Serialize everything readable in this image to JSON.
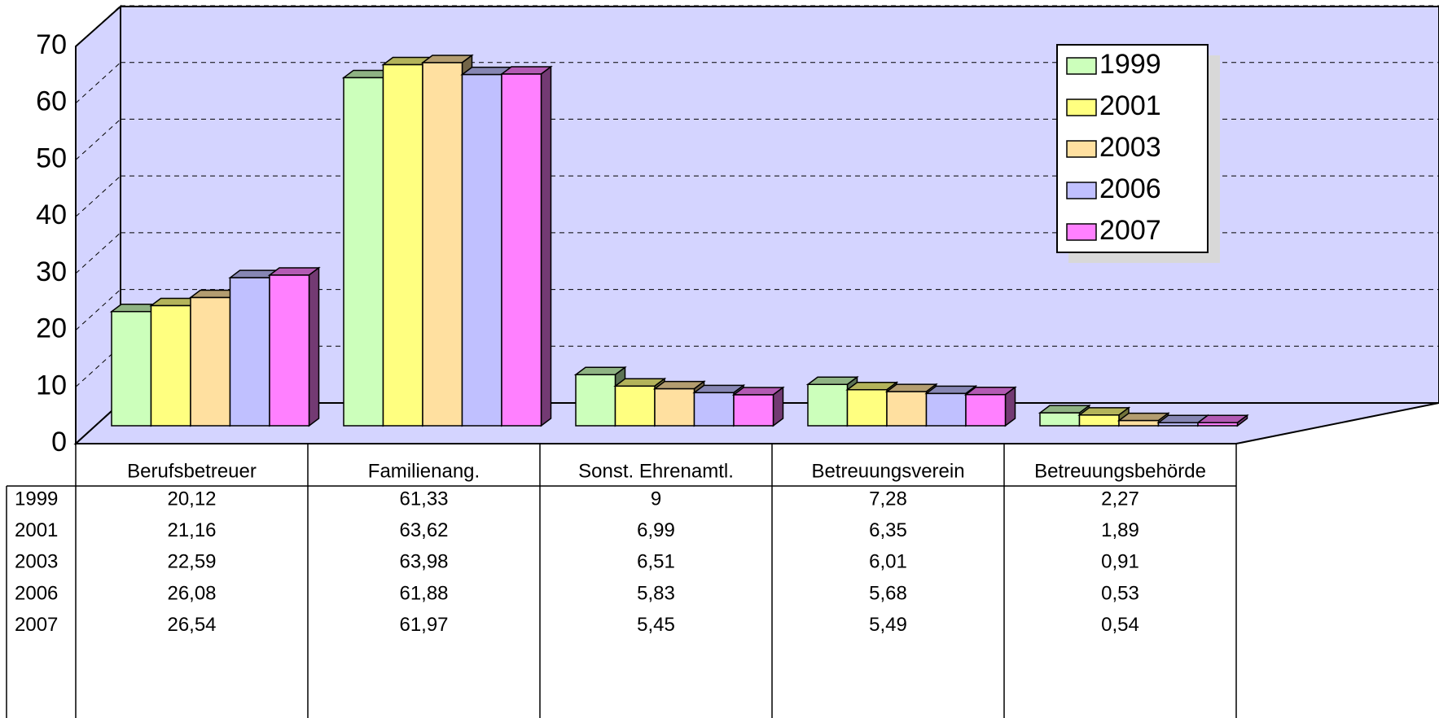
{
  "chart_data": {
    "type": "bar3d",
    "categories": [
      "Berufsbetreuer",
      "Familienang.",
      "Sonst. Ehrenamtl.",
      "Betreuungsverein",
      "Betreuungsbehörde"
    ],
    "series": [
      {
        "name": "1999",
        "color": "#ccffbb",
        "values": [
          20.12,
          61.33,
          9,
          7.28,
          2.27
        ],
        "value_labels": [
          "20,12",
          "61,33",
          "9",
          "7,28",
          "2,27"
        ]
      },
      {
        "name": "2001",
        "color": "#ffff80",
        "values": [
          21.16,
          63.62,
          6.99,
          6.35,
          1.89
        ],
        "value_labels": [
          "21,16",
          "63,62",
          "6,99",
          "6,35",
          "1,89"
        ]
      },
      {
        "name": "2003",
        "color": "#ffe0a0",
        "values": [
          22.59,
          63.98,
          6.51,
          6.01,
          0.91
        ],
        "value_labels": [
          "22,59",
          "63,98",
          "6,51",
          "6,01",
          "0,91"
        ]
      },
      {
        "name": "2006",
        "color": "#c0c0ff",
        "values": [
          26.08,
          61.88,
          5.83,
          5.68,
          0.53
        ],
        "value_labels": [
          "26,08",
          "61,88",
          "5,83",
          "5,68",
          "0,53"
        ]
      },
      {
        "name": "2007",
        "color": "#ff80ff",
        "values": [
          26.54,
          61.97,
          5.45,
          5.49,
          0.54
        ],
        "value_labels": [
          "26,54",
          "61,97",
          "5,45",
          "5,49",
          "0,54"
        ]
      }
    ],
    "ylim": [
      0,
      70
    ],
    "yticks": [
      0,
      10,
      20,
      30,
      40,
      50,
      60,
      70
    ],
    "grid": true,
    "legend": "upper right"
  }
}
